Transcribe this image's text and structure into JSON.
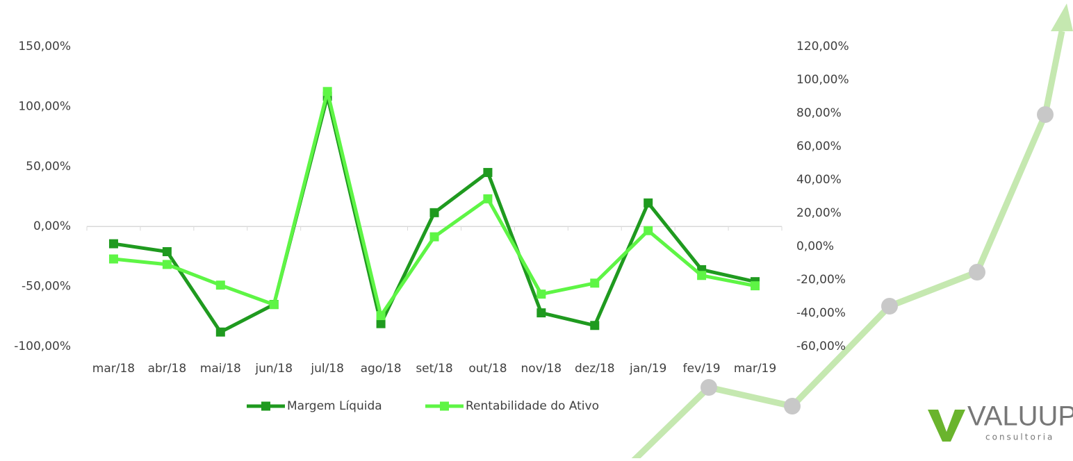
{
  "chart_data": {
    "type": "line",
    "categories": [
      "mar/18",
      "abr/18",
      "mai/18",
      "jun/18",
      "jul/18",
      "ago/18",
      "set/18",
      "out/18",
      "nov/18",
      "dez/18",
      "jan/19",
      "fev/19",
      "mar/19"
    ],
    "series": [
      {
        "name": "Margem Líquida",
        "color": "#1f9a1f",
        "values": [
          -14.4,
          -21,
          -88,
          -65,
          108.5,
          -81,
          11.5,
          45,
          -72,
          -82.5,
          19.6,
          -36,
          -46
        ]
      },
      {
        "name": "Rentabilidade do Ativo",
        "color": "#5ef545",
        "axis": "y2",
        "values": [
          -7.5,
          -10.8,
          -23.2,
          -34.9,
          93,
          -41.5,
          5.8,
          28.6,
          -28.6,
          -22,
          9.5,
          -17.4,
          -23.6
        ]
      }
    ],
    "ylim": [
      -100,
      150
    ],
    "yticks": [
      {
        "value": -100,
        "label": "-100,00%"
      },
      {
        "value": -50,
        "label": "-50,00%"
      },
      {
        "value": 0,
        "label": "0,00%"
      },
      {
        "value": 50,
        "label": "50,00%"
      },
      {
        "value": 100,
        "label": "100,00%"
      },
      {
        "value": 150,
        "label": "150,00%"
      }
    ],
    "y2lim": [
      -60,
      120
    ],
    "y2ticks": [
      {
        "value": -60,
        "label": "-60,00%"
      },
      {
        "value": -40,
        "label": "-40,00%"
      },
      {
        "value": -20,
        "label": "-20,00%"
      },
      {
        "value": 0,
        "label": "0,00%"
      },
      {
        "value": 20,
        "label": "20,00%"
      },
      {
        "value": 40,
        "label": "40,00%"
      },
      {
        "value": 60,
        "label": "60,00%"
      },
      {
        "value": 80,
        "label": "80,00%"
      },
      {
        "value": 100,
        "label": "100,00%"
      },
      {
        "value": 120,
        "label": "120,00%"
      }
    ],
    "grid": false,
    "legend": "bottom"
  },
  "logo": {
    "name": "VALUUP",
    "tagline": "consultoria"
  }
}
